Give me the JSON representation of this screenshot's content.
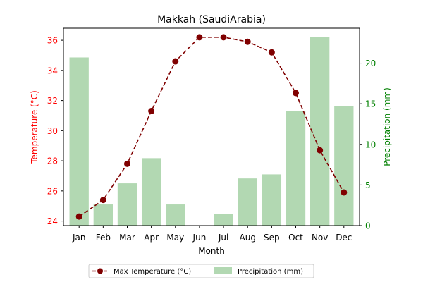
{
  "chart_data": {
    "type": "bar+line",
    "title": "Makkah (SaudiArabia)",
    "xlabel": "Month",
    "categories": [
      "Jan",
      "Feb",
      "Mar",
      "Apr",
      "May",
      "Jun",
      "Jul",
      "Aug",
      "Sep",
      "Oct",
      "Nov",
      "Dec"
    ],
    "left_axis": {
      "label": "Temperature (°C)",
      "color": "#ff0000",
      "ylim": [
        23.7,
        36.8
      ],
      "ticks": [
        24,
        26,
        28,
        30,
        32,
        34,
        36
      ]
    },
    "right_axis": {
      "label": "Precipitation (mm)",
      "color": "#008000",
      "ylim": [
        0,
        24.3
      ],
      "ticks": [
        0,
        5,
        10,
        15,
        20
      ]
    },
    "series": [
      {
        "name": "Max Temperature (°C)",
        "kind": "line",
        "axis": "left",
        "color": "#800000",
        "line_style": "dashed",
        "marker": "circle",
        "values": [
          24.3,
          25.4,
          27.8,
          31.3,
          34.6,
          36.2,
          36.2,
          35.9,
          35.2,
          32.5,
          28.7,
          25.9
        ]
      },
      {
        "name": "Precipitation (mm)",
        "kind": "bar",
        "axis": "right",
        "color": "#b2d8b2",
        "values": [
          20.7,
          2.6,
          5.2,
          8.3,
          2.6,
          0,
          1.4,
          5.8,
          6.3,
          14.1,
          23.2,
          14.7
        ]
      }
    ],
    "legend": {
      "placement": "bottom-center"
    },
    "grid": false
  }
}
